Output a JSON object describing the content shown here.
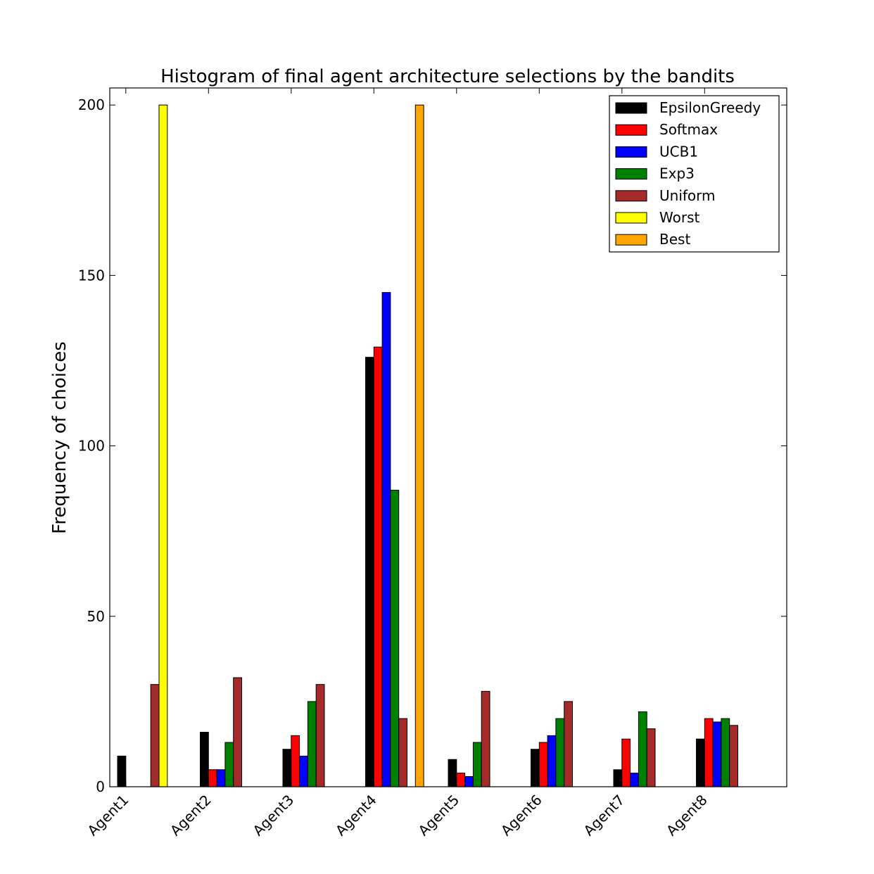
{
  "chart_data": {
    "type": "bar",
    "title": "Histogram of final agent architecture selections by the bandits",
    "xlabel": "",
    "ylabel": "Frequency of choices",
    "ylim": [
      0,
      205
    ],
    "yticks": [
      0,
      50,
      100,
      150,
      200
    ],
    "grid": false,
    "legend_position": "top-right",
    "categories": [
      "Agent1",
      "Agent2",
      "Agent3",
      "Agent4",
      "Agent5",
      "Agent6",
      "Agent7",
      "Agent8"
    ],
    "series": [
      {
        "name": "EpsilonGreedy",
        "color": "#000000",
        "values": [
          9,
          16,
          11,
          126,
          8,
          11,
          5,
          14
        ]
      },
      {
        "name": "Softmax",
        "color": "#ff0000",
        "values": [
          0,
          5,
          15,
          129,
          4,
          13,
          14,
          20
        ]
      },
      {
        "name": "UCB1",
        "color": "#0000ff",
        "values": [
          0,
          5,
          9,
          145,
          3,
          15,
          4,
          19
        ]
      },
      {
        "name": "Exp3",
        "color": "#008000",
        "values": [
          0,
          13,
          25,
          87,
          13,
          20,
          22,
          20
        ]
      },
      {
        "name": "Uniform",
        "color": "#a52a2a",
        "values": [
          30,
          32,
          30,
          20,
          28,
          25,
          17,
          18
        ]
      },
      {
        "name": "Worst",
        "color": "#ffff00",
        "values": [
          200,
          0,
          0,
          0,
          0,
          0,
          0,
          0
        ]
      },
      {
        "name": "Best",
        "color": "#ffa500",
        "values": [
          0,
          0,
          0,
          200,
          0,
          0,
          0,
          0
        ]
      }
    ]
  }
}
